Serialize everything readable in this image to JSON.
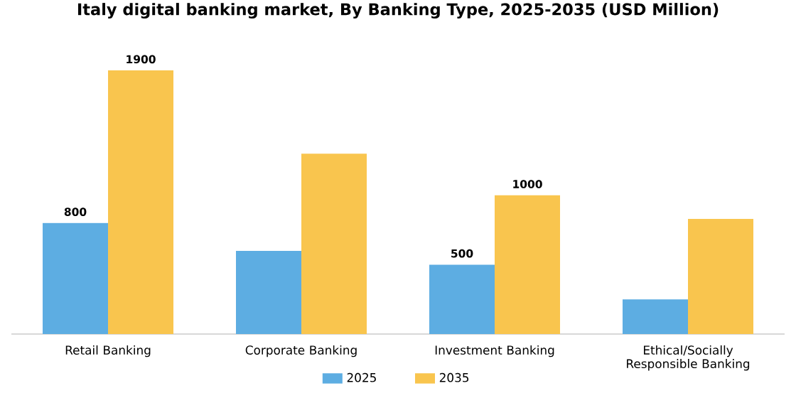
{
  "chart_data": {
    "type": "bar",
    "title": "Italy digital banking market, By Banking Type, 2025-2035 (USD Million)",
    "categories": [
      "Retail Banking",
      "Corporate Banking",
      "Investment Banking",
      "Ethical/Socially Responsible Banking"
    ],
    "series": [
      {
        "name": "2025",
        "color": "#5dade2",
        "values": [
          800,
          600,
          500,
          250
        ],
        "value_labels": [
          "800",
          null,
          "500",
          null
        ]
      },
      {
        "name": "2035",
        "color": "#f9c54e",
        "values": [
          1900,
          1300,
          1000,
          830
        ],
        "value_labels": [
          "1900",
          null,
          "1000",
          null
        ]
      }
    ],
    "legend": "bottom",
    "tick_labels": "x"
  }
}
